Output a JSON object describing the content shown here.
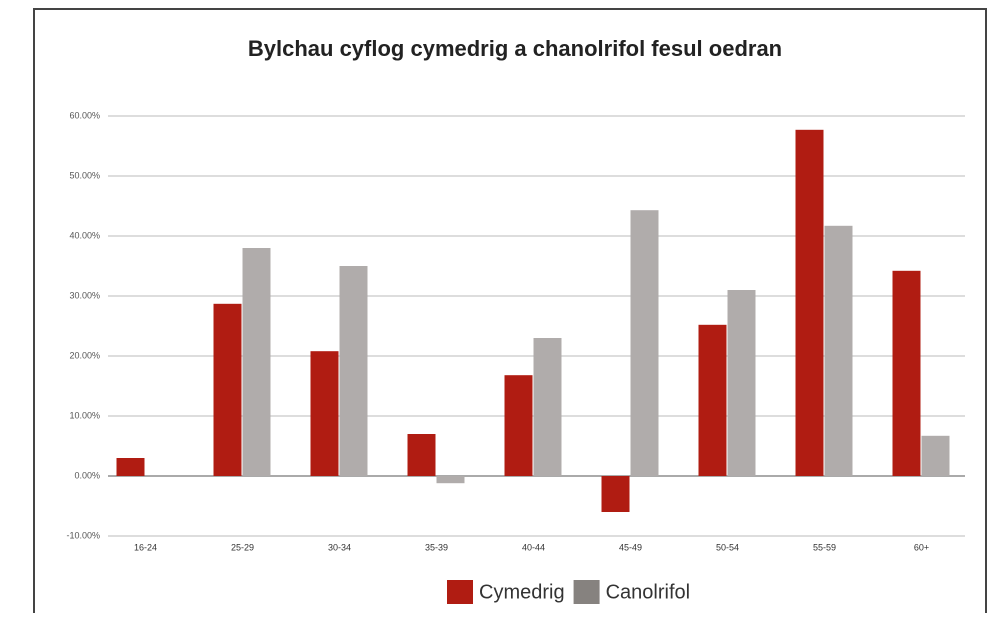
{
  "chart_data": {
    "type": "bar",
    "title": "Bylchau cyflog cymedrig a chanolrifol fesul oedran",
    "categories": [
      "16-24",
      "25-29",
      "30-34",
      "35-39",
      "40-44",
      "45-49",
      "50-54",
      "55-59",
      "60+"
    ],
    "series": [
      {
        "name": "Cymedrig",
        "color": "#b01c12",
        "values": [
          3.0,
          28.7,
          20.8,
          7.0,
          16.8,
          -6.0,
          25.2,
          57.7,
          34.2
        ]
      },
      {
        "name": "Canolrifol",
        "color": "#b0acab",
        "values": [
          0,
          38.0,
          35.0,
          -1.2,
          23.0,
          44.3,
          31.0,
          41.7,
          6.7
        ]
      }
    ],
    "ylim": [
      -10,
      60
    ],
    "yticks": [
      {
        "value": -10,
        "label": "-10.00%"
      },
      {
        "value": 0,
        "label": "0.00%"
      },
      {
        "value": 10,
        "label": "10.00%"
      },
      {
        "value": 20,
        "label": "20.00%"
      },
      {
        "value": 30,
        "label": "30.00%"
      },
      {
        "value": 40,
        "label": "40.00%"
      },
      {
        "value": 50,
        "label": "50.00%"
      },
      {
        "value": 60,
        "label": "60.00%"
      }
    ],
    "grid": true,
    "legend": "bottom"
  }
}
